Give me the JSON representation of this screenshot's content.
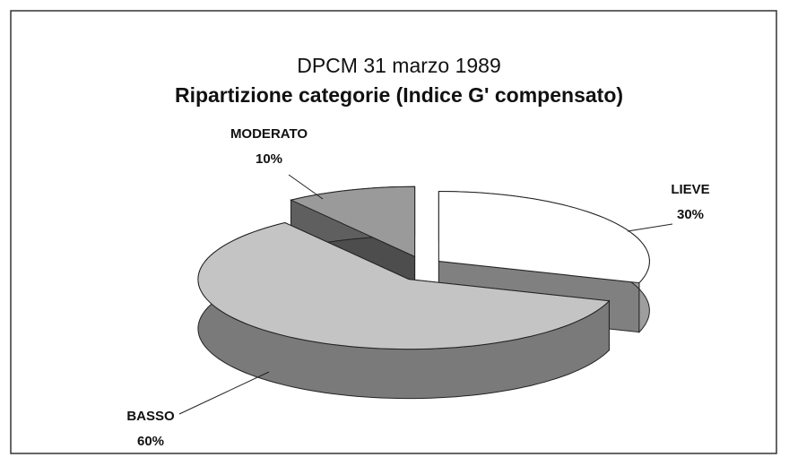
{
  "chart_data": {
    "type": "pie",
    "title": "DPCM 31 marzo 1989",
    "subtitle": "Ripartizione categorie (Indice G' compensato)",
    "categories": [
      "LIEVE",
      "BASSO",
      "MODERATO"
    ],
    "values": [
      30,
      60,
      10
    ],
    "value_labels": [
      "30%",
      "60%",
      "10%"
    ],
    "colors": [
      "#ffffff",
      "#c4c4c4",
      "#9a9a9a"
    ]
  }
}
